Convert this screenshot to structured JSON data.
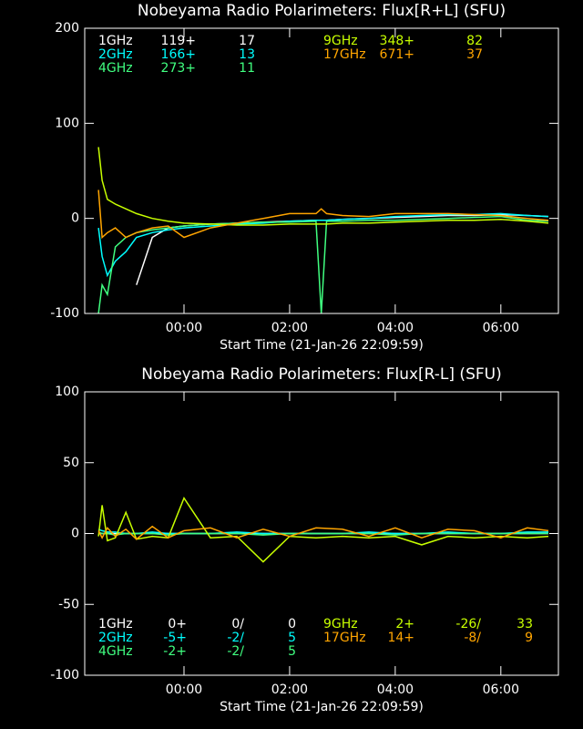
{
  "chart_data": [
    {
      "type": "line",
      "title": "Nobeyama Radio Polarimeters: Flux[R+L] (SFU)",
      "x_label": "Start Time (21-Jan-26 22:09:59)",
      "x": [
        -1.62,
        -1.55,
        -1.45,
        -1.3,
        -1.1,
        -0.9,
        -0.6,
        -0.3,
        0,
        0.5,
        1,
        1.5,
        2,
        2.5,
        2.6,
        2.7,
        3,
        3.5,
        4,
        4.5,
        5,
        5.5,
        6,
        6.5,
        6.9
      ],
      "xlim": [
        -1.88,
        7.09
      ],
      "xticks": [
        {
          "value": 0,
          "label": "00:00"
        },
        {
          "value": 2,
          "label": "02:00"
        },
        {
          "value": 4,
          "label": "04:00"
        },
        {
          "value": 6,
          "label": "06:00"
        }
      ],
      "ylim": [
        -100,
        200
      ],
      "yticks": [
        -100,
        0,
        100,
        200
      ],
      "legend": "upper left",
      "series": [
        {
          "name": "1GHz",
          "offset_label": "119+",
          "scale_label": "17",
          "color": "#ffffff",
          "values": [
            null,
            null,
            null,
            null,
            null,
            -70,
            -20,
            -10,
            -8,
            -6,
            -5,
            -4,
            -3,
            -2,
            -2,
            -2,
            -1,
            0,
            1,
            2,
            3,
            3,
            4,
            3,
            2
          ]
        },
        {
          "name": "2GHz",
          "offset_label": "166+",
          "scale_label": "13",
          "color": "#00ffff",
          "values": [
            -10,
            -40,
            -60,
            -45,
            -35,
            -20,
            -15,
            -12,
            -10,
            -8,
            -6,
            -5,
            -3,
            -2,
            -2,
            -2,
            -1,
            0,
            2,
            3,
            4,
            4,
            5,
            3,
            2
          ]
        },
        {
          "name": "4GHz",
          "offset_label": "273+",
          "scale_label": "11",
          "color": "#40ff80",
          "values": [
            -100,
            -70,
            -80,
            -30,
            -20,
            -15,
            -12,
            -10,
            -8,
            -6,
            -5,
            -4,
            -4,
            -3,
            -100,
            -3,
            -3,
            -2,
            -2,
            -1,
            0,
            1,
            2,
            -2,
            -3
          ]
        },
        {
          "name": "9GHz",
          "offset_label": "348+",
          "scale_label": "82",
          "color": "#c8ff00",
          "values": [
            75,
            40,
            20,
            15,
            10,
            5,
            0,
            -3,
            -5,
            -6,
            -7,
            -7,
            -6,
            -6,
            -6,
            -6,
            -5,
            -5,
            -4,
            -3,
            -2,
            -2,
            -1,
            -3,
            -5
          ]
        },
        {
          "name": "17GHz",
          "offset_label": "671+",
          "scale_label": "37",
          "color": "#ffa500",
          "values": [
            30,
            -20,
            -15,
            -10,
            -20,
            -15,
            -10,
            -8,
            -20,
            -10,
            -5,
            0,
            5,
            5,
            10,
            5,
            3,
            2,
            5,
            5,
            5,
            4,
            3,
            0,
            -2
          ]
        }
      ]
    },
    {
      "type": "line",
      "title": "Nobeyama Radio Polarimeters: Flux[R-L] (SFU)",
      "x_label": "Start Time (21-Jan-26 22:09:59)",
      "x": [
        -1.62,
        -1.55,
        -1.45,
        -1.3,
        -1.1,
        -0.9,
        -0.6,
        -0.3,
        0,
        0.5,
        1,
        1.5,
        2,
        2.5,
        3,
        3.5,
        4,
        4.5,
        5,
        5.5,
        6,
        6.5,
        6.9
      ],
      "xlim": [
        -1.88,
        7.09
      ],
      "xticks": [
        {
          "value": 0,
          "label": "00:00"
        },
        {
          "value": 2,
          "label": "02:00"
        },
        {
          "value": 4,
          "label": "04:00"
        },
        {
          "value": 6,
          "label": "06:00"
        }
      ],
      "ylim": [
        -100,
        100
      ],
      "yticks": [
        -100,
        -50,
        0,
        50,
        100
      ],
      "legend": "lower left",
      "series": [
        {
          "name": "1GHz",
          "offset_label": "0+",
          "scale_label": "0/",
          "extra_label": "0",
          "color": "#ffffff",
          "values": [
            0,
            0,
            0,
            0,
            0,
            0,
            0,
            0,
            0,
            0,
            0,
            0,
            0,
            0,
            0,
            0,
            0,
            0,
            0,
            0,
            0,
            0,
            0
          ]
        },
        {
          "name": "2GHz",
          "offset_label": "-5+",
          "scale_label": "-2/",
          "extra_label": "5",
          "color": "#00ffff",
          "values": [
            3,
            2,
            1,
            1,
            0,
            0,
            1,
            0,
            0,
            0,
            1,
            0,
            0,
            0,
            0,
            1,
            0,
            0,
            1,
            0,
            0,
            1,
            1
          ]
        },
        {
          "name": "4GHz",
          "offset_label": "-2+",
          "scale_label": "-2/",
          "extra_label": "5",
          "color": "#40ff80",
          "values": [
            1,
            0,
            0,
            -1,
            0,
            0,
            0,
            -1,
            0,
            0,
            0,
            -1,
            0,
            0,
            0,
            0,
            -1,
            0,
            0,
            0,
            0,
            0,
            0
          ]
        },
        {
          "name": "9GHz",
          "offset_label": "2+",
          "scale_label": "-26/",
          "extra_label": "33",
          "color": "#c8ff00",
          "values": [
            -2,
            20,
            -5,
            -3,
            15,
            -4,
            -2,
            -3,
            25,
            -3,
            -2,
            -20,
            -2,
            -3,
            -2,
            -3,
            -2,
            -8,
            -2,
            -3,
            -2,
            -3,
            -2
          ]
        },
        {
          "name": "17GHz",
          "offset_label": "14+",
          "scale_label": "-8/",
          "extra_label": "9",
          "color": "#ffa500",
          "values": [
            2,
            -3,
            4,
            -2,
            3,
            -4,
            5,
            -3,
            2,
            4,
            -3,
            3,
            -2,
            4,
            3,
            -2,
            4,
            -3,
            3,
            2,
            -3,
            4,
            2
          ]
        }
      ]
    }
  ]
}
